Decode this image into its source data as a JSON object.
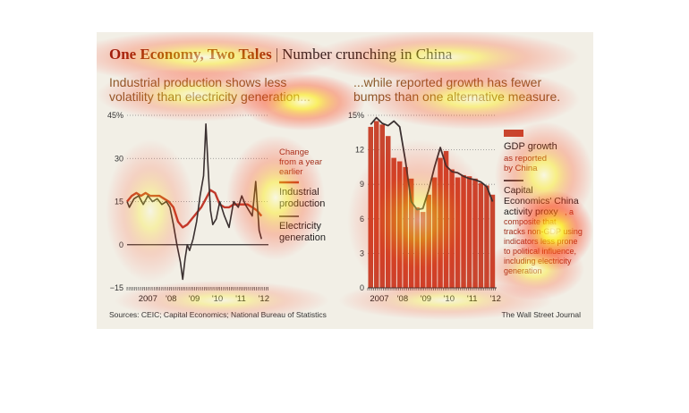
{
  "headline": {
    "main": "One Economy, Two Tales",
    "separator": "|",
    "sub": "Number crunching in China"
  },
  "left_panel": {
    "subtitle_line1": "Industrial production shows less",
    "subtitle_line2": "volatility than electricity generation..."
  },
  "right_panel": {
    "subtitle_line1": "...while reported growth has fewer",
    "subtitle_line2": "bumps than one alternative measure."
  },
  "footer": {
    "sources": "Sources: CEIC; Capital Economics; National Bureau of Statistics",
    "credit": "The Wall Street Journal"
  },
  "colors": {
    "red_line": "#c0392b",
    "dark_line": "#3a3030",
    "bar_fill": "#c9452e",
    "background": "#f2efe6"
  },
  "chart_data": [
    {
      "type": "line",
      "ylim": [
        -15,
        45
      ],
      "yticks": [
        "45%",
        "30",
        "15",
        "0",
        "−15"
      ],
      "ytick_values": [
        45,
        30,
        15,
        0,
        -15
      ],
      "xticks": [
        "2007",
        "'08",
        "'09",
        "'10",
        "'11",
        "'12"
      ],
      "xtick_values": [
        2007.0,
        2008.0,
        2009.0,
        2010.0,
        2011.0,
        2012.0
      ],
      "xlim": [
        2006.5,
        2012.6
      ],
      "legend_note": [
        "Change",
        "from a year",
        "earlier"
      ],
      "series": [
        {
          "name": "Industrial production",
          "label_lines": [
            "Industrial",
            "production"
          ],
          "x": [
            2006.5,
            2006.7,
            2006.9,
            2007.1,
            2007.3,
            2007.5,
            2007.7,
            2007.9,
            2008.1,
            2008.3,
            2008.5,
            2008.7,
            2008.9,
            2009.1,
            2009.3,
            2009.5,
            2009.7,
            2009.9,
            2010.1,
            2010.3,
            2010.5,
            2010.7,
            2010.9,
            2011.1,
            2011.3,
            2011.5,
            2011.7,
            2011.9,
            2012.1,
            2012.3
          ],
          "y": [
            15,
            17,
            18,
            17,
            18,
            17,
            17,
            17,
            16,
            15,
            13,
            8,
            6,
            7,
            9,
            11,
            13,
            16,
            19,
            18,
            14,
            13,
            13,
            14,
            14,
            14,
            14,
            13,
            12,
            10
          ]
        },
        {
          "name": "Electricity generation",
          "label_lines": [
            "Electricity",
            "generation"
          ],
          "x": [
            2006.5,
            2006.6,
            2006.8,
            2007.0,
            2007.2,
            2007.4,
            2007.6,
            2007.8,
            2008.0,
            2008.2,
            2008.35,
            2008.5,
            2008.65,
            2008.8,
            2008.9,
            2009.0,
            2009.1,
            2009.2,
            2009.35,
            2009.5,
            2009.65,
            2009.8,
            2009.9,
            2010.0,
            2010.1,
            2010.2,
            2010.35,
            2010.5,
            2010.7,
            2010.9,
            2011.1,
            2011.3,
            2011.45,
            2011.6,
            2011.75,
            2011.9,
            2012.05,
            2012.2,
            2012.3
          ],
          "y": [
            15,
            13,
            16,
            17,
            14,
            17,
            15,
            16,
            14,
            15,
            13,
            7,
            0,
            -6,
            -12,
            -5,
            0,
            -2,
            2,
            8,
            17,
            24,
            42,
            26,
            12,
            7,
            9,
            15,
            10,
            6,
            15,
            13,
            17,
            14,
            12,
            10,
            22,
            5,
            2
          ]
        }
      ]
    },
    {
      "type": "bar",
      "ylim": [
        0,
        15
      ],
      "yticks": [
        "15%",
        "12",
        "9",
        "6",
        "3",
        "0"
      ],
      "ytick_values": [
        15,
        12,
        9,
        6,
        3,
        0
      ],
      "xticks": [
        "2007",
        "'08",
        "'09",
        "'10",
        "'11",
        "'12"
      ],
      "xtick_values": [
        2007.0,
        2008.0,
        2009.0,
        2010.0,
        2011.0,
        2012.0
      ],
      "xlim": [
        2006.75,
        2012.3
      ],
      "series": [
        {
          "name": "GDP growth",
          "label_lines": [
            "GDP growth"
          ],
          "note_lines": [
            "as reported",
            "by China"
          ],
          "x": [
            2006.875,
            2007.125,
            2007.375,
            2007.625,
            2007.875,
            2008.125,
            2008.375,
            2008.625,
            2008.875,
            2009.125,
            2009.375,
            2009.625,
            2009.875,
            2010.125,
            2010.375,
            2010.625,
            2010.875,
            2011.125,
            2011.375,
            2011.625,
            2011.875,
            2012.125
          ],
          "y": [
            14.0,
            14.5,
            14.2,
            13.2,
            11.3,
            11.0,
            10.5,
            9.5,
            7.0,
            6.6,
            8.1,
            9.6,
            11.3,
            11.9,
            10.3,
            9.6,
            9.8,
            9.7,
            9.5,
            9.1,
            8.9,
            8.1
          ]
        },
        {
          "name": "Capital Economics' China activity proxy",
          "label_lines": [
            "Capital",
            "Economics' China",
            "activity proxy"
          ],
          "note_lines": [
            ", a",
            "composite that",
            "tracks non-GDP using",
            "indicators less prone",
            "to political influence,",
            "including electricity",
            "generation"
          ],
          "x": [
            2006.875,
            2007.125,
            2007.375,
            2007.625,
            2007.875,
            2008.125,
            2008.375,
            2008.625,
            2008.875,
            2009.125,
            2009.375,
            2009.625,
            2009.875,
            2010.125,
            2010.375,
            2010.625,
            2010.875,
            2011.125,
            2011.375,
            2011.625,
            2011.875,
            2012.125
          ],
          "y": [
            14.2,
            14.8,
            14.3,
            14.1,
            14.5,
            14.0,
            11.0,
            7.5,
            6.8,
            6.9,
            8.5,
            10.5,
            12.2,
            10.6,
            10.1,
            10.0,
            9.7,
            9.5,
            9.4,
            9.2,
            8.8,
            7.5
          ]
        }
      ]
    }
  ]
}
